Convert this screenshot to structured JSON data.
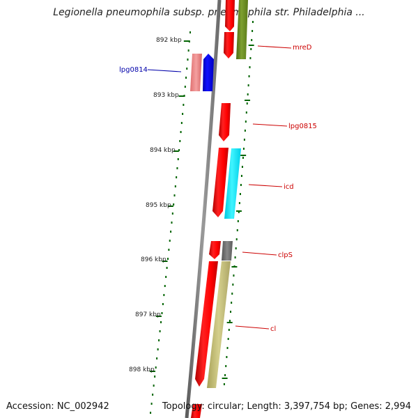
{
  "title": "Legionella pneumophila subsp. pneumophila str. Philadelphia ...",
  "footer": {
    "accession": "Accession: NC_002942",
    "topology": "Topology: circular; Length: 3,397,754 bp; Genes: 2,994"
  },
  "ruler": {
    "labels": [
      "892 kbp",
      "893 kbp",
      "894 kbp",
      "895 kbp",
      "896 kbp",
      "897 kbp",
      "898 kbp"
    ]
  },
  "genes": [
    {
      "name": "mreD",
      "color": "#cc0000"
    },
    {
      "name": "lpg0814",
      "color": "#0000aa"
    },
    {
      "name": "lpg0815",
      "color": "#cc0000"
    },
    {
      "name": "icd",
      "color": "#cc0000"
    },
    {
      "name": "clpS",
      "color": "#cc0000"
    },
    {
      "name": "cl",
      "color": "#cc0000"
    }
  ],
  "colors": {
    "forward_gene": "#ff0000",
    "reverse_gene": "#0000ff",
    "cog_olive": "#6b8e23",
    "cog_pink": "#f08080",
    "cog_cyan": "#00e5ff",
    "cog_gray": "#6e6e6e",
    "cog_khaki": "#bdb76b",
    "backbone": "#808080",
    "ruler": "#006400"
  }
}
